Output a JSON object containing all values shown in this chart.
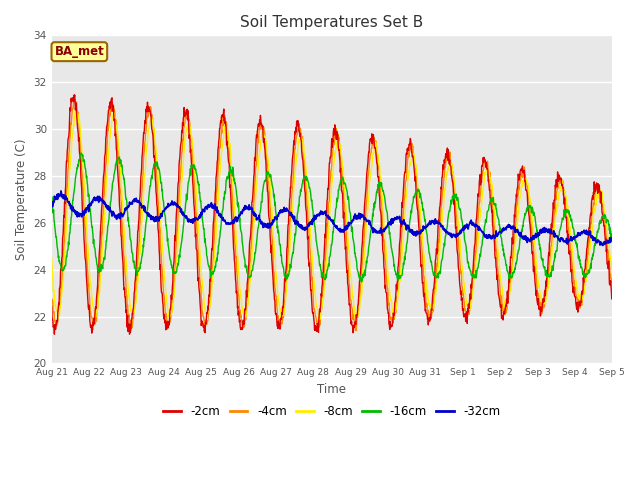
{
  "title": "Soil Temperatures Set B",
  "xlabel": "Time",
  "ylabel": "Soil Temperature (C)",
  "ylim": [
    20,
    34
  ],
  "yticks": [
    20,
    22,
    24,
    26,
    28,
    30,
    32,
    34
  ],
  "legend_labels": [
    "-2cm",
    "-4cm",
    "-8cm",
    "-16cm",
    "-32cm"
  ],
  "line_colors": [
    "#dd0000",
    "#ff8800",
    "#ffee00",
    "#00bb00",
    "#0000cc"
  ],
  "annotation_text": "BA_met",
  "annotation_bg": "#ffff99",
  "annotation_border": "#996600",
  "x_labels": [
    "Aug 21",
    "Aug 22",
    "Aug 23",
    "Aug 24",
    "Aug 25",
    "Aug 26",
    "Aug 27",
    "Aug 28",
    "Aug 29",
    "Aug 30",
    "Aug 31",
    "Sep 1",
    "Sep 2",
    "Sep 3",
    "Sep 4",
    "Sep 5"
  ]
}
